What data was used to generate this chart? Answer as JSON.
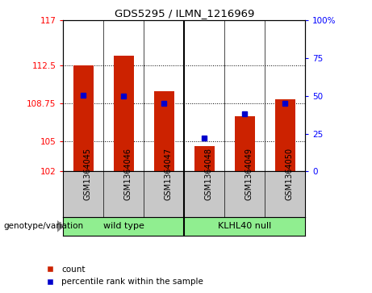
{
  "title": "GDS5295 / ILMN_1216969",
  "categories": [
    "GSM1364045",
    "GSM1364046",
    "GSM1364047",
    "GSM1364048",
    "GSM1364049",
    "GSM1364050"
  ],
  "red_values": [
    112.5,
    113.5,
    110.0,
    104.5,
    107.5,
    109.2
  ],
  "blue_values_left": [
    109.6,
    109.5,
    108.75,
    105.3,
    107.7,
    108.75
  ],
  "ylim_left": [
    102,
    117
  ],
  "ylim_right": [
    0,
    100
  ],
  "yticks_left": [
    102,
    105,
    108.75,
    112.5,
    117
  ],
  "yticks_right": [
    0,
    25,
    50,
    75,
    100
  ],
  "ytick_labels_left": [
    "102",
    "105",
    "108.75",
    "112.5",
    "117"
  ],
  "ytick_labels_right": [
    "0",
    "25",
    "50",
    "75",
    "100%"
  ],
  "bar_color": "#CC2200",
  "dot_color": "#0000CC",
  "ax_bg": "#FFFFFF",
  "tick_area_bg": "#C8C8C8",
  "group_bg": "#90EE90",
  "genotype_label": "genotype/variation",
  "legend_count": "count",
  "legend_percentile": "percentile rank within the sample",
  "bar_width": 0.5,
  "group_separator": 2.5,
  "group1_label": "wild type",
  "group2_label": "KLHL40 null"
}
